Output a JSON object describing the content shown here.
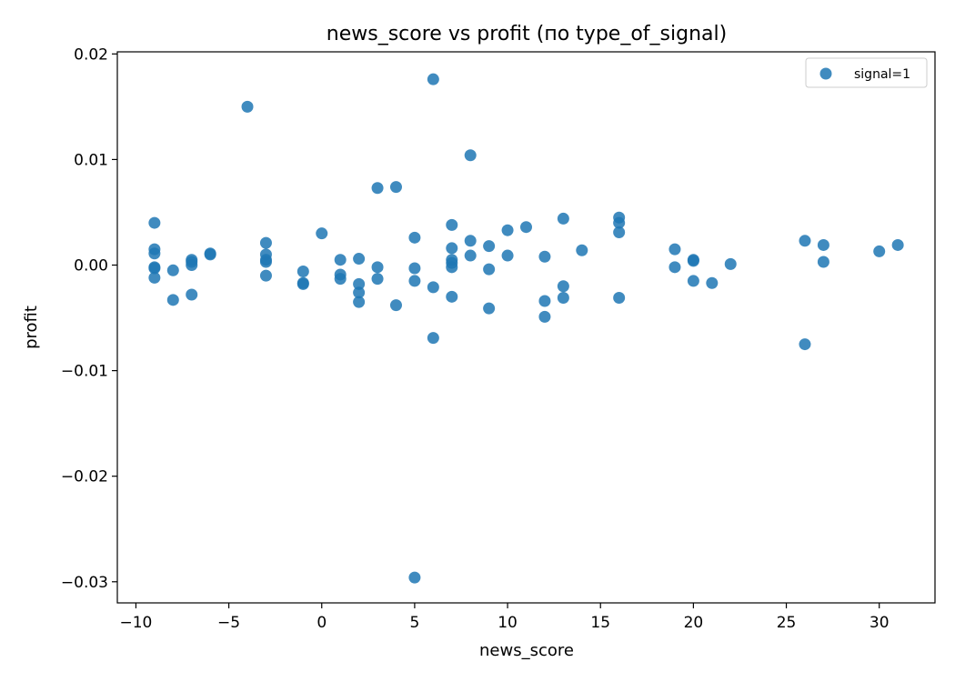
{
  "chart_data": {
    "type": "scatter",
    "title": "news_score vs profit (по type_of_signal)",
    "xlabel": "news_score",
    "ylabel": "profit",
    "xlim": [
      -11,
      33
    ],
    "ylim": [
      -0.032,
      0.0202
    ],
    "xticks": [
      -10,
      -5,
      0,
      5,
      10,
      15,
      20,
      25,
      30
    ],
    "xtick_labels": [
      "−10",
      "−5",
      "0",
      "5",
      "10",
      "15",
      "20",
      "25",
      "30"
    ],
    "yticks": [
      -0.03,
      -0.02,
      -0.01,
      0.0,
      0.01,
      0.02
    ],
    "ytick_labels": [
      "−0.03",
      "−0.02",
      "−0.01",
      "0.00",
      "0.01",
      "0.02"
    ],
    "grid": false,
    "legend_position": "top-right",
    "series": [
      {
        "name": "signal=1",
        "color": "#1f77b4",
        "points": [
          [
            -9,
            0.004
          ],
          [
            -9,
            0.0015
          ],
          [
            -9,
            0.0011
          ],
          [
            -9,
            -0.0002
          ],
          [
            -9,
            -0.0003
          ],
          [
            -9,
            -0.0012
          ],
          [
            -8,
            -0.0005
          ],
          [
            -8,
            -0.0033
          ],
          [
            -7,
            0.0005
          ],
          [
            -7,
            0.0003
          ],
          [
            -7,
            0.0
          ],
          [
            -7,
            -0.0028
          ],
          [
            -6,
            0.0011
          ],
          [
            -6,
            0.001
          ],
          [
            -4,
            0.015
          ],
          [
            -3,
            0.0021
          ],
          [
            -3,
            0.001
          ],
          [
            -3,
            0.0005
          ],
          [
            -3,
            0.0003
          ],
          [
            -3,
            -0.001
          ],
          [
            -1,
            -0.0006
          ],
          [
            -1,
            -0.0017
          ],
          [
            -1,
            -0.0018
          ],
          [
            0,
            0.003
          ],
          [
            1,
            0.0005
          ],
          [
            1,
            -0.0009
          ],
          [
            1,
            -0.0013
          ],
          [
            2,
            0.0006
          ],
          [
            2,
            -0.0018
          ],
          [
            2,
            -0.0026
          ],
          [
            2,
            -0.0035
          ],
          [
            3,
            0.0073
          ],
          [
            3,
            -0.0002
          ],
          [
            3,
            -0.0013
          ],
          [
            4,
            0.0074
          ],
          [
            4,
            -0.0038
          ],
          [
            5,
            0.0026
          ],
          [
            5,
            -0.0003
          ],
          [
            5,
            -0.0015
          ],
          [
            5,
            -0.0296
          ],
          [
            6,
            0.0176
          ],
          [
            6,
            -0.0021
          ],
          [
            6,
            -0.0069
          ],
          [
            7,
            0.0038
          ],
          [
            7,
            0.0016
          ],
          [
            7,
            0.0005
          ],
          [
            7,
            0.0002
          ],
          [
            7,
            -0.0002
          ],
          [
            7,
            -0.003
          ],
          [
            8,
            0.0104
          ],
          [
            8,
            0.0023
          ],
          [
            8,
            0.0009
          ],
          [
            9,
            0.0018
          ],
          [
            9,
            -0.0004
          ],
          [
            9,
            -0.0041
          ],
          [
            10,
            0.0033
          ],
          [
            10,
            0.0009
          ],
          [
            11,
            0.0036
          ],
          [
            12,
            0.0008
          ],
          [
            12,
            -0.0034
          ],
          [
            12,
            -0.0049
          ],
          [
            13,
            0.0044
          ],
          [
            13,
            -0.002
          ],
          [
            13,
            -0.0031
          ],
          [
            14,
            0.0014
          ],
          [
            16,
            0.0045
          ],
          [
            16,
            0.004
          ],
          [
            16,
            0.0031
          ],
          [
            16,
            -0.0031
          ],
          [
            19,
            0.0015
          ],
          [
            19,
            -0.0002
          ],
          [
            20,
            0.0005
          ],
          [
            20,
            0.0004
          ],
          [
            20,
            -0.0015
          ],
          [
            21,
            -0.0017
          ],
          [
            22,
            0.0001
          ],
          [
            26,
            0.0023
          ],
          [
            26,
            -0.0075
          ],
          [
            27,
            0.0019
          ],
          [
            27,
            0.0003
          ],
          [
            30,
            0.0013
          ],
          [
            31,
            0.0019
          ]
        ]
      }
    ]
  }
}
